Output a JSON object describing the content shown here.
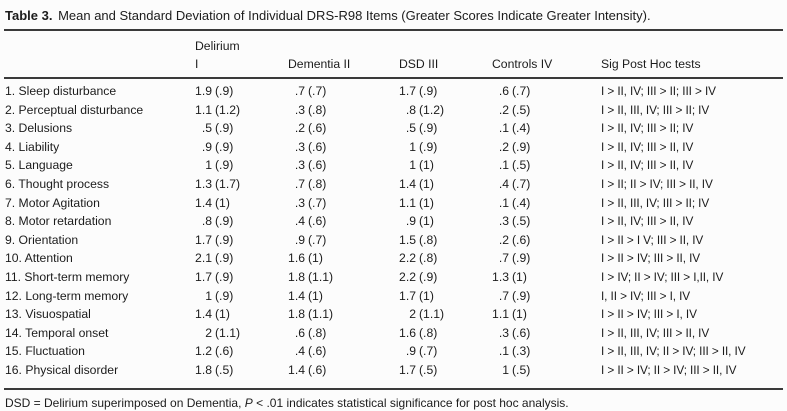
{
  "title": {
    "label": "Table 3.",
    "text": " Mean and Standard Deviation of Individual DRS-R98 Items (Greater Scores Indicate Greater Intensity)."
  },
  "table": {
    "header": {
      "items": "",
      "col1_line1": "Delirium",
      "col1_line2": "I",
      "col2": "Dementia II",
      "col3": "DSD III",
      "col4": "Controls IV",
      "col5": "Sig Post Hoc tests"
    },
    "rows": [
      {
        "label": "1. Sleep disturbance",
        "delirium": "1.9 (.9)",
        "dementia": ".7 (.7)",
        "dsd": "1.7 (.9)",
        "controls": ".6 (.7)",
        "sig": "I > II, IV; III > II; III > IV"
      },
      {
        "label": "2. Perceptual disturbance",
        "delirium": "1.1 (1.2)",
        "dementia": ".3 (.8)",
        "dsd": ".8 (1.2)",
        "controls": ".2 (.5)",
        "sig": "I > II, III, IV; III > II; IV"
      },
      {
        "label": "3. Delusions",
        "delirium": ".5 (.9)",
        "dementia": ".2 (.6)",
        "dsd": ".5 (.9)",
        "controls": ".1 (.4)",
        "sig": "I > II, IV; III > II; IV"
      },
      {
        "label": "4. Liability",
        "delirium": ".9 (.9)",
        "dementia": ".3 (.6)",
        "dsd": "1 (.9)",
        "controls": ".2 (.9)",
        "sig": "I > II, IV; III > II, IV"
      },
      {
        "label": "5. Language",
        "delirium": "1 (.9)",
        "dementia": ".3 (.6)",
        "dsd": "1 (1)",
        "controls": ".1 (.5)",
        "sig": "I > II, IV; III > II, IV"
      },
      {
        "label": "6. Thought process",
        "delirium": "1.3 (1.7)",
        "dementia": ".7 (.8)",
        "dsd": "1.4 (1)",
        "controls": ".4 (.7)",
        "sig": "I > II; II > IV; III > II, IV"
      },
      {
        "label": "7. Motor Agitation",
        "delirium": "1.4 (1)",
        "dementia": ".3 (.7)",
        "dsd": "1.1 (1)",
        "controls": ".1 (.4)",
        "sig": "I > II, III, IV; III > II; IV"
      },
      {
        "label": "8. Motor retardation",
        "delirium": ".8 (.9)",
        "dementia": ".4 (.6)",
        "dsd": ".9 (1)",
        "controls": ".3 (.5)",
        "sig": "I > II, IV; III > II, IV"
      },
      {
        "label": "9. Orientation",
        "delirium": "1.7 (.9)",
        "dementia": ".9 (.7)",
        "dsd": "1.5 (.8)",
        "controls": ".2 (.6)",
        "sig": "I > II > I V; III > II, IV"
      },
      {
        "label": "10. Attention",
        "delirium": "2.1 (.9)",
        "dementia": "1.6 (1)",
        "dsd": "2.2 (.8)",
        "controls": ".7 (.9)",
        "sig": "I > II > IV; III > II, IV"
      },
      {
        "label": "11. Short-term memory",
        "delirium": "1.7 (.9)",
        "dementia": "1.8 (1.1)",
        "dsd": "2.2 (.9)",
        "controls": "1.3 (1)",
        "sig": "I > IV; II > IV; III > I,II, IV"
      },
      {
        "label": "12. Long-term memory",
        "delirium": "1 (.9)",
        "dementia": "1.4 (1)",
        "dsd": "1.7 (1)",
        "controls": ".7 (.9)",
        "sig": "I, II > IV; III > I, IV"
      },
      {
        "label": "13. Visuospatial",
        "delirium": "1.4 (1)",
        "dementia": "1.8 (1.1)",
        "dsd": "2 (1.1)",
        "controls": "1.1 (1)",
        "sig": "I > II > IV; III > I, IV"
      },
      {
        "label": "14. Temporal onset",
        "delirium": "2 (1.1)",
        "dementia": ".6 (.8)",
        "dsd": "1.6 (.8)",
        "controls": ".3 (.6)",
        "sig": "I > II, III, IV; III > II, IV"
      },
      {
        "label": "15. Fluctuation",
        "delirium": "1.2 (.6)",
        "dementia": ".4 (.6)",
        "dsd": ".9 (.7)",
        "controls": ".1 (.3)",
        "sig": "I > II, III, IV; II > IV; III > II, IV"
      },
      {
        "label": "16. Physical disorder",
        "delirium": "1.8 (.5)",
        "dementia": "1.4 (.6)",
        "dsd": "1.7 (.5)",
        "controls": "1 (.5)",
        "sig": "I > II > IV; II > IV; III > II, IV"
      }
    ]
  },
  "footnote": {
    "prefix": "DSD = Delirium superimposed on Dementia, ",
    "italic": "P",
    "suffix": " < .01 indicates statistical significance for post hoc analysis."
  }
}
